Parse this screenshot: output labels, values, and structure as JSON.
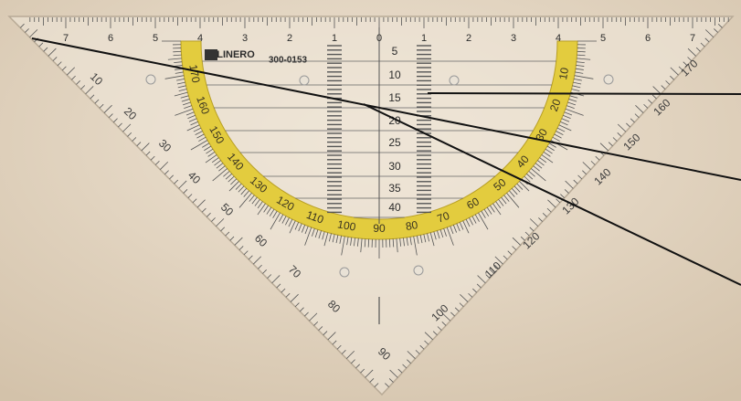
{
  "brand": "LINERO",
  "model": "300-0153",
  "ruler_top": [
    7,
    6,
    5,
    4,
    3,
    2,
    1,
    0,
    1,
    2,
    3,
    4,
    5,
    6,
    7
  ],
  "center_scale": [
    5,
    10,
    15,
    20,
    25,
    30,
    35,
    40
  ],
  "inner_arc": [
    10,
    20,
    30,
    40,
    50,
    60,
    70,
    80,
    90,
    100,
    110,
    120,
    130,
    140,
    150,
    160,
    170
  ],
  "outer_left": [
    10,
    20,
    30,
    40,
    50,
    60,
    70,
    80,
    90
  ],
  "outer_right": [
    170,
    160,
    150,
    140,
    130,
    120,
    110,
    100
  ]
}
